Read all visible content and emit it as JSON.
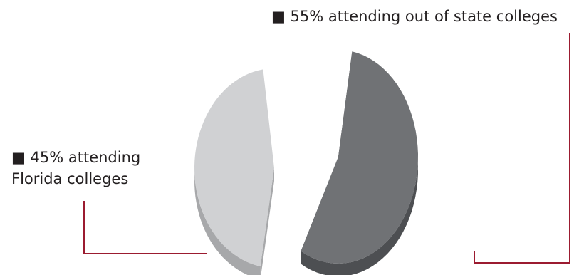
{
  "chart_data": {
    "type": "pie",
    "style": "3d-exploded",
    "slices": [
      {
        "label_lines": [
          "45% attending",
          "Florida colleges"
        ],
        "value": 45,
        "top_color": "#d0d1d3",
        "side_color": "#a7a8aa"
      },
      {
        "label_lines": [
          "55% attending out of state colleges"
        ],
        "value": 55,
        "top_color": "#707275",
        "side_color": "#4d4f52"
      }
    ],
    "legend_marker": "■",
    "leader_line_color": "#9b1b30"
  }
}
